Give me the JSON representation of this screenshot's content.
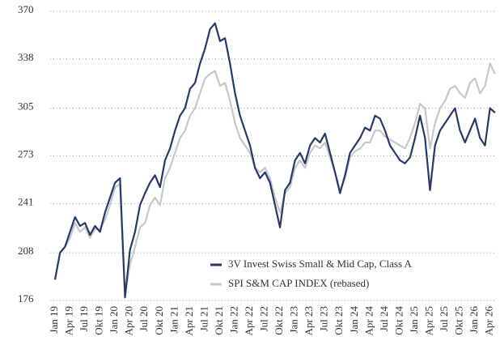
{
  "chart_data": {
    "type": "line",
    "categories": [
      "Jan 19",
      null,
      null,
      "Apr 19",
      null,
      null,
      "Jul 19",
      null,
      null,
      "Okt 19",
      null,
      null,
      "Jan 20",
      null,
      null,
      "Apr 20",
      null,
      null,
      "Jul 20",
      null,
      null,
      "Okt 20",
      null,
      null,
      "Jan 21",
      null,
      null,
      "Apr 21",
      null,
      null,
      "Jul 21",
      null,
      null,
      "Okt 21",
      null,
      null,
      "Jan 22",
      null,
      null,
      "Apr 22",
      null,
      null,
      "Jul 22",
      null,
      null,
      "Okt 22",
      null,
      null,
      "Jan 23",
      null,
      null,
      "Apr 23",
      null,
      null,
      "Jul 23",
      null,
      null,
      "Okt 23",
      null,
      null,
      "Jan 24",
      null,
      null,
      "Apr 24",
      null,
      null,
      "Jul 24",
      null,
      null,
      "Okt 24",
      null,
      null,
      "Jan 25",
      null,
      null,
      "Apr 25",
      null,
      null,
      "Jul 25",
      null,
      null,
      "Okt 25",
      null,
      null,
      "Jan 26",
      null,
      null,
      "Apr 26",
      null
    ],
    "series": [
      {
        "name": "3V Invest Swiss Small & Mid Cap, Class A",
        "color": "#27396b",
        "values": [
          190,
          208,
          212,
          222,
          232,
          226,
          228,
          220,
          226,
          222,
          235,
          245,
          255,
          258,
          178,
          210,
          222,
          240,
          248,
          255,
          260,
          252,
          270,
          278,
          290,
          300,
          305,
          318,
          322,
          335,
          345,
          358,
          362,
          350,
          352,
          335,
          315,
          300,
          290,
          280,
          265,
          258,
          262,
          255,
          240,
          225,
          250,
          255,
          270,
          275,
          268,
          280,
          285,
          282,
          288,
          275,
          262,
          248,
          260,
          275,
          280,
          285,
          292,
          290,
          300,
          298,
          290,
          280,
          275,
          270,
          268,
          272,
          285,
          300,
          285,
          250,
          280,
          290,
          295,
          300,
          305,
          290,
          282,
          290,
          298,
          285,
          280,
          305,
          302
        ]
      },
      {
        "name": "SPI S&M CAP INDEX (rebased)",
        "color": "#c8c8c8",
        "values": [
          190,
          208,
          212,
          218,
          228,
          222,
          225,
          218,
          224,
          224,
          230,
          240,
          252,
          254,
          180,
          200,
          212,
          225,
          228,
          240,
          245,
          240,
          258,
          265,
          275,
          285,
          290,
          300,
          305,
          315,
          325,
          328,
          330,
          320,
          322,
          310,
          295,
          285,
          280,
          275,
          265,
          262,
          265,
          258,
          245,
          235,
          248,
          252,
          265,
          270,
          265,
          275,
          280,
          278,
          282,
          272,
          262,
          250,
          258,
          272,
          276,
          278,
          282,
          282,
          290,
          290,
          286,
          284,
          282,
          280,
          278,
          285,
          295,
          308,
          305,
          278,
          295,
          305,
          310,
          318,
          320,
          315,
          312,
          322,
          325,
          315,
          320,
          335,
          328
        ]
      }
    ],
    "ylim": [
      176,
      370
    ],
    "yticks": [
      176,
      208,
      241,
      273,
      305,
      338,
      370
    ],
    "grid": true,
    "legend": "lower right"
  }
}
